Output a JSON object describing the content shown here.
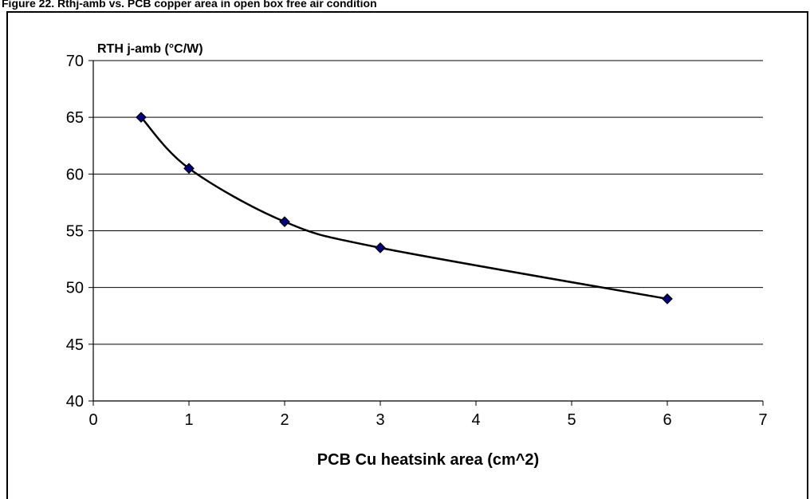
{
  "header": {
    "title": "Figure 22.  Rthj-amb vs. PCB copper area in open box free air condition"
  },
  "chart_data": {
    "type": "line",
    "title": "",
    "xlabel": "PCB Cu heatsink area (cm^2)",
    "ylabel": "RTH j-amb (°C/W)",
    "xlim": [
      0,
      7
    ],
    "ylim": [
      40,
      70
    ],
    "x_ticks": [
      0,
      1,
      2,
      3,
      4,
      5,
      6,
      7
    ],
    "y_ticks": [
      40,
      45,
      50,
      55,
      60,
      65,
      70
    ],
    "grid": "horizontal",
    "legend": "none",
    "series": [
      {
        "x": [
          0.5,
          1,
          2,
          3,
          6
        ],
        "y": [
          65,
          60.5,
          55.8,
          53.5,
          49
        ],
        "marker": "diamond",
        "line_color": "#000000",
        "marker_color": "#000080"
      }
    ]
  }
}
